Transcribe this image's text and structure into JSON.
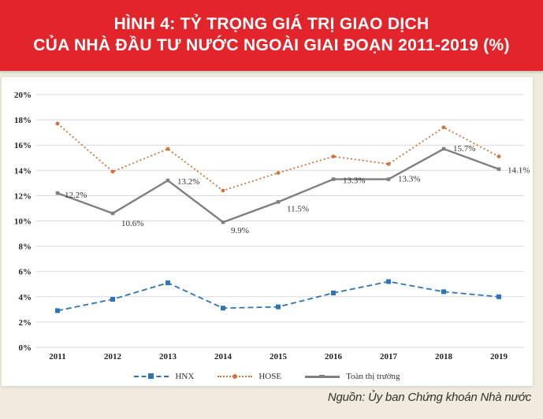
{
  "header": {
    "title_line1": "HÌNH 4: TỶ TRỌNG GIÁ TRỊ GIAO DỊCH",
    "title_line2": "CỦA NHÀ ĐẦU TƯ NƯỚC NGOÀI GIAI ĐOẠN 2011-2019 (%)",
    "band_color": "#e2252b",
    "text_color": "#ffffff"
  },
  "footer": {
    "source": "Nguồn: Ủy ban Chứng khoán Nhà nước"
  },
  "colors": {
    "background": "#f1ebdf",
    "panel": "#ffffff",
    "gridline": "#d9d9d9",
    "axis_text": "#262626",
    "label_text": "#333333"
  },
  "chart_data": {
    "type": "line",
    "title": "Tỷ trọng giá trị giao dịch của nhà đầu tư nước ngoài giai đoạn 2011-2019 (%)",
    "categories": [
      "2011",
      "2012",
      "2013",
      "2014",
      "2015",
      "2016",
      "2017",
      "2018",
      "2019"
    ],
    "xlabel": "",
    "ylabel": "",
    "ylim": [
      0,
      20
    ],
    "ytick_step": 2,
    "ytick_suffix": "%",
    "grid": true,
    "legend_position": "bottom",
    "series": [
      {
        "name": "HNX",
        "color": "#2e74b5",
        "line_style": "dashed",
        "marker": "square",
        "values": [
          2.9,
          3.8,
          5.1,
          3.1,
          3.2,
          4.3,
          5.2,
          4.4,
          4.0
        ],
        "labels": false
      },
      {
        "name": "HOSE",
        "color": "#d5703a",
        "line_style": "dotted",
        "marker": "circle",
        "values": [
          17.7,
          13.9,
          15.7,
          12.4,
          13.8,
          15.1,
          14.5,
          17.4,
          15.1
        ],
        "labels": false
      },
      {
        "name": "Toàn thị trường",
        "color": "#7f7f7f",
        "line_style": "solid",
        "marker": "square-small",
        "values": [
          12.2,
          10.6,
          13.2,
          9.9,
          11.5,
          13.3,
          13.3,
          15.7,
          14.1
        ],
        "labels": true,
        "point_labels": [
          "12.2%",
          "10.6%",
          "13.2%",
          "9.9%",
          "11.5%",
          "13.3%",
          "13.3%",
          "15.7%",
          "14.1%"
        ],
        "label_offsets": [
          [
            9,
            6
          ],
          [
            11,
            16
          ],
          [
            12,
            5
          ],
          [
            10,
            14
          ],
          [
            11,
            12
          ],
          [
            12,
            5
          ],
          [
            12,
            3
          ],
          [
            12,
            3
          ],
          [
            11,
            5
          ]
        ]
      }
    ]
  }
}
